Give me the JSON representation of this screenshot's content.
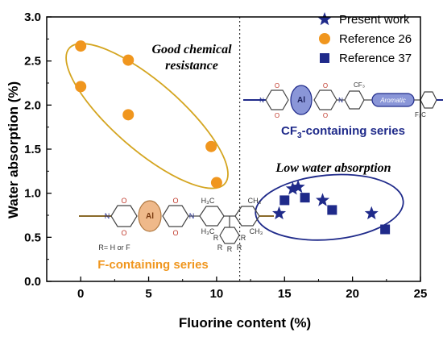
{
  "chart_data": {
    "type": "scatter",
    "xlabel": "Fluorine content (%)",
    "ylabel": "Water absorption (%)",
    "xlim": [
      -2.5,
      25
    ],
    "ylim": [
      0,
      3.0
    ],
    "x_ticks": [
      "0",
      "5",
      "10",
      "15",
      "20",
      "25"
    ],
    "y_ticks": [
      "0.0",
      "0.5",
      "1.0",
      "1.5",
      "2.0",
      "2.5",
      "3.0"
    ],
    "grid": false,
    "legend_position": "top-right",
    "divider_x": 11.7,
    "series": [
      {
        "name": "Present work",
        "marker": "star",
        "color": "#1f2a8a",
        "points": [
          {
            "x": 14.6,
            "y": 0.77
          },
          {
            "x": 15.6,
            "y": 1.05
          },
          {
            "x": 16.0,
            "y": 1.07
          },
          {
            "x": 17.8,
            "y": 0.92
          },
          {
            "x": 21.4,
            "y": 0.77
          }
        ]
      },
      {
        "name": "Reference 26",
        "marker": "circle",
        "color": "#f0961e",
        "points": [
          {
            "x": 0.0,
            "y": 2.67
          },
          {
            "x": 0.0,
            "y": 2.21
          },
          {
            "x": 3.5,
            "y": 2.51
          },
          {
            "x": 3.5,
            "y": 1.89
          },
          {
            "x": 9.6,
            "y": 1.53
          },
          {
            "x": 10.0,
            "y": 1.12
          }
        ]
      },
      {
        "name": "Reference 37",
        "marker": "square",
        "color": "#1f2a8a",
        "points": [
          {
            "x": 15.0,
            "y": 0.92
          },
          {
            "x": 16.5,
            "y": 0.95
          },
          {
            "x": 18.5,
            "y": 0.81
          },
          {
            "x": 22.4,
            "y": 0.59
          }
        ]
      }
    ],
    "annotations": [
      {
        "text": "Good chemical",
        "color": "#111111"
      },
      {
        "text": "resistance",
        "color": "#111111"
      },
      {
        "text": "Low water absorption",
        "color": "#111111"
      },
      {
        "text": "F-containing series",
        "color": "#f0961e"
      },
      {
        "text": "CF",
        "color": "#1f2a8a"
      },
      {
        "text": "3",
        "color": "#1f2a8a"
      },
      {
        "text": "-containing series",
        "color": "#1f2a8a"
      },
      {
        "text": "R= H or F",
        "color": "#333333"
      }
    ],
    "structure_labels": {
      "al": "Al",
      "aromatic": "Aromatic",
      "o": "O",
      "n": "N",
      "r": "R",
      "h3c": "H₃C",
      "ch3": "CH₃",
      "cf3": "CF₃",
      "f3c": "F₃C"
    },
    "colors": {
      "orange": "#f0961e",
      "navy": "#1f2a8a",
      "ellipse_orange": "#d4a520",
      "ellipse_blue": "#1f2a8a"
    }
  }
}
